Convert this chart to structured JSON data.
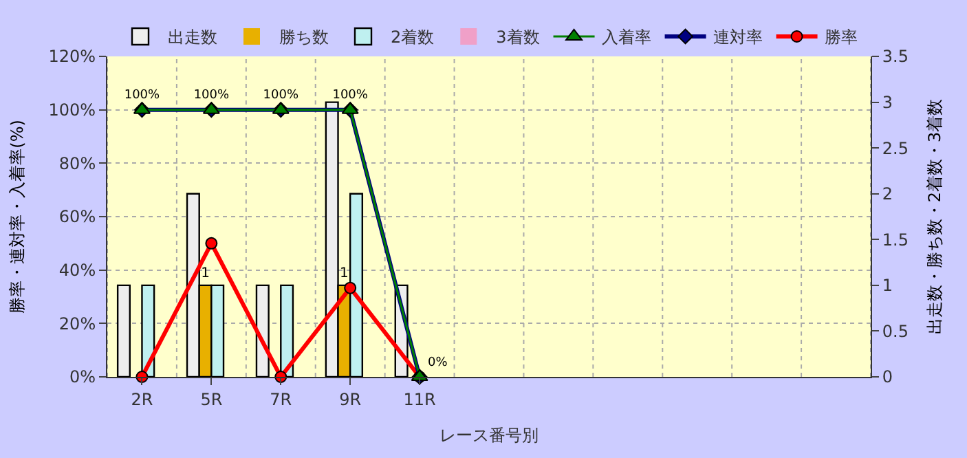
{
  "chart_data": {
    "type": "bar",
    "xlabel": "レース番号別",
    "ylabel": "勝率・連対率・入着率(%)",
    "y2label": "出走数・勝ち数・2着数・3着数",
    "categories": [
      "2R",
      "5R",
      "7R",
      "9R",
      "11R",
      null,
      null,
      null,
      null,
      null,
      null
    ],
    "series": [
      {
        "name": "出走数",
        "axis": "y2",
        "color": "#eeeeee",
        "values": [
          1,
          2,
          1,
          3,
          1,
          null,
          null,
          null,
          null,
          null,
          null
        ]
      },
      {
        "name": "勝ち数",
        "axis": "y2",
        "color": "#e8b000",
        "values": [
          0,
          1,
          0,
          1,
          0,
          null,
          null,
          null,
          null,
          null,
          null
        ],
        "value_labels": [
          null,
          "1",
          null,
          "1",
          null,
          null,
          null,
          null,
          null,
          null,
          null
        ]
      },
      {
        "name": "2着数",
        "axis": "y2",
        "color": "#bff0f0",
        "values": [
          1,
          1,
          1,
          2,
          0,
          null,
          null,
          null,
          null,
          null,
          null
        ]
      },
      {
        "name": "3着数",
        "axis": "y2",
        "color": "#f0a0c8",
        "values": [
          0,
          0,
          0,
          0,
          0,
          null,
          null,
          null,
          null,
          null,
          null
        ]
      },
      {
        "name": "入着率",
        "type": "line",
        "color": "#008000",
        "marker": "triangle",
        "values": [
          100,
          100,
          100,
          100,
          0,
          null,
          null,
          null,
          null,
          null,
          null
        ]
      },
      {
        "name": "連対率",
        "type": "line",
        "color": "#000080",
        "marker": "diamond",
        "values": [
          100,
          100,
          100,
          100,
          0,
          null,
          null,
          null,
          null,
          null,
          null
        ],
        "value_labels": [
          "100%",
          "100%",
          "100%",
          "100%",
          "0%",
          null,
          null,
          null,
          null,
          null,
          null
        ]
      },
      {
        "name": "勝率",
        "type": "line",
        "color": "#ff0000",
        "marker": "circle",
        "values": [
          0,
          50,
          0,
          33.3,
          0,
          null,
          null,
          null,
          null,
          null,
          null
        ]
      }
    ],
    "ylim": [
      0,
      120
    ],
    "yticks": [
      {
        "value": 0,
        "label": "0%"
      },
      {
        "value": 20,
        "label": "20%"
      },
      {
        "value": 40,
        "label": "40%"
      },
      {
        "value": 60,
        "label": "60%"
      },
      {
        "value": 80,
        "label": "80%"
      },
      {
        "value": 100,
        "label": "100%"
      },
      {
        "value": 120,
        "label": "120%"
      }
    ],
    "y2lim": [
      0,
      3.5
    ],
    "y2ticks": [
      0,
      0.5,
      1,
      1.5,
      2,
      2.5,
      3,
      3.5
    ],
    "grid": true,
    "legend": "top"
  }
}
